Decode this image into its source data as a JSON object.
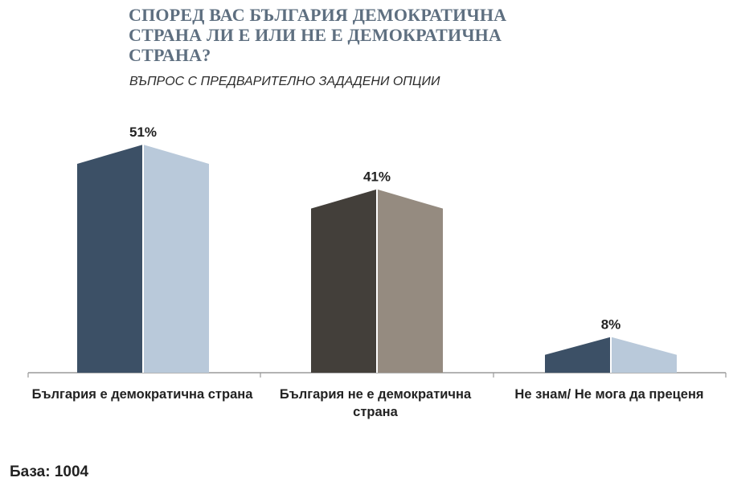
{
  "title": "СПОРЕД ВАС БЪЛГАРИЯ ДЕМОКРАТИЧНА СТРАНА ЛИ Е ИЛИ НЕ Е ДЕМОКРАТИЧНА СТРАНА?",
  "subtitle": "ВЪПРОС С ПРЕДВАРИТЕЛНО ЗАДАДЕНИ ОПЦИИ",
  "base_label": "База: 1004",
  "chart_data": {
    "type": "bar",
    "categories": [
      "България е демократична страна",
      "България не е демократична страна",
      "Не знам/ Не мога да преценя"
    ],
    "values": [
      51,
      41,
      8
    ],
    "value_labels": [
      "51%",
      "41%",
      "8%"
    ],
    "unit": "%",
    "ylim": [
      0,
      51
    ],
    "grid": false,
    "legend": "none",
    "colors": [
      {
        "dark": "#3c5066",
        "light": "#b9c9da"
      },
      {
        "dark": "#433f3a",
        "light": "#958b80"
      },
      {
        "dark": "#3c5066",
        "light": "#b9c9da"
      }
    ],
    "axis_color": "#9a9a9a"
  }
}
